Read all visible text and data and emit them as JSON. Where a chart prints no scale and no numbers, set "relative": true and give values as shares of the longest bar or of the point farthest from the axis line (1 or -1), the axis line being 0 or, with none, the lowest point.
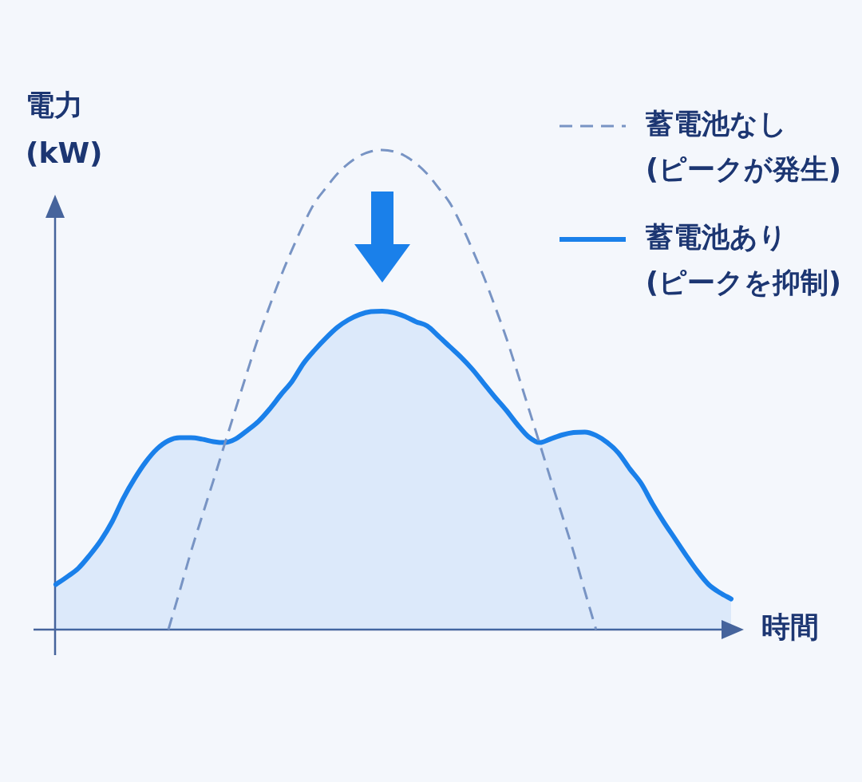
{
  "chart_data": {
    "type": "line",
    "relative": true,
    "ylabel": "電力\n(kW)",
    "xlabel": "時間",
    "legend": "top right",
    "categories": [
      null,
      null,
      null,
      null,
      null,
      null,
      null,
      null,
      null,
      null,
      null,
      null,
      null,
      null,
      null,
      null,
      null,
      null,
      null,
      null,
      null,
      null,
      null,
      null,
      null,
      null,
      null,
      null,
      null,
      null,
      null,
      null,
      null,
      null,
      null,
      null,
      null,
      null,
      null,
      null,
      null,
      null,
      null,
      null,
      null,
      null,
      null,
      null,
      null,
      null,
      null,
      null,
      null,
      null,
      null,
      null,
      null,
      null,
      null,
      null,
      null
    ],
    "series": [
      {
        "name": "蓄電池なし\n(ピークが発生)",
        "type": "line",
        "line_style": "dashed",
        "color": "#7894c4",
        "values": [
          null,
          null,
          null,
          null,
          null,
          null,
          null,
          null,
          null,
          null,
          0,
          0.08,
          0.162,
          0.237,
          0.311,
          0.387,
          0.462,
          0.537,
          0.61,
          0.675,
          0.737,
          0.793,
          0.845,
          0.89,
          0.921,
          0.95,
          0.972,
          0.988,
          0.997,
          1,
          0.997,
          0.988,
          0.972,
          0.95,
          0.921,
          0.89,
          0.845,
          0.793,
          0.737,
          0.675,
          0.61,
          0.537,
          0.462,
          0.387,
          0.311,
          0.237,
          0.162,
          0.08,
          0,
          null,
          null,
          null,
          null,
          null,
          null,
          null,
          null,
          null,
          null,
          null,
          null
        ]
      },
      {
        "name": "蓄電池あり\n(ピークを抑制)",
        "type": "area",
        "line_style": "solid",
        "color": "#1a80ea",
        "values": [
          0.094,
          0.11,
          0.128,
          0.155,
          0.186,
          0.225,
          0.274,
          0.315,
          0.35,
          0.377,
          0.394,
          0.4,
          0.4,
          0.397,
          0.392,
          0.39,
          0.398,
          0.415,
          0.434,
          0.46,
          0.49,
          0.518,
          0.555,
          0.583,
          0.608,
          0.63,
          0.646,
          0.657,
          0.663,
          0.664,
          0.661,
          0.653,
          0.642,
          0.633,
          0.612,
          0.59,
          0.568,
          0.543,
          0.514,
          0.485,
          0.458,
          0.428,
          0.402,
          0.39,
          0.398,
          0.406,
          0.411,
          0.412,
          0.405,
          0.39,
          0.368,
          0.335,
          0.305,
          0.263,
          0.225,
          0.19,
          0.155,
          0.122,
          0.094,
          0.077,
          0.064
        ]
      }
    ]
  }
}
